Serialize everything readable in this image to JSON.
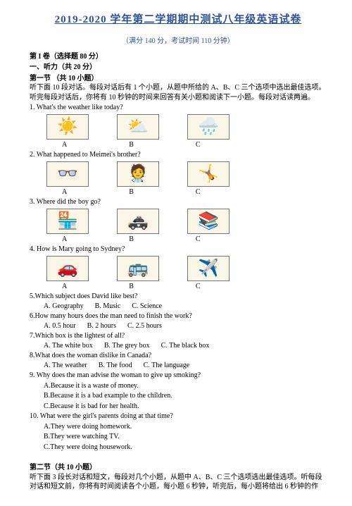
{
  "header": {
    "title": "2019-2020 学年第二学期期中测试八年级英语试卷",
    "subtitle": "（满分 140 分，考试时间 110 分钟）"
  },
  "part1": {
    "head": "第 I 卷（选择题 80 分）",
    "listening": "一、听力（共 20 分）",
    "section1_title": "第一节 （共 10 小题）",
    "section1_instr": "听下面 10 段对话。每段对话后有 1 个小题，从题中所给的 A、B、C 三个选项中选出最佳选项。听完每段对话后，你将有 10 秒钟的时间来回答有关小题和阅读下一小题。每段对话读两遍。"
  },
  "q1": {
    "text": "1. What's the weather like today?",
    "a": "A",
    "b": "B",
    "c": "C"
  },
  "q2": {
    "text": "2. What happened to Meimei's brother?",
    "a": "A",
    "b": "B",
    "c": "C"
  },
  "q3": {
    "text": "3. Where did the boy go?",
    "a": "A",
    "b": "B",
    "c": "C"
  },
  "q4": {
    "text": "4. How is Mary going to Sydney?",
    "a": "A",
    "b": "B",
    "c": "C"
  },
  "q5": {
    "text": "5.Which subject does David like best?",
    "a": "A. Geography",
    "b": "B. Music",
    "c": "C. Science"
  },
  "q6": {
    "text": "6.How many hours does the man need to finish the work?",
    "a": "A. 0.5 hour",
    "b": "B. 2 hours",
    "c": "C. 2.5 hours"
  },
  "q7": {
    "text": "7.Which box is the lightest of all?",
    "a": "A. The white box",
    "b": "B. The grey box",
    "c": "C. The black box"
  },
  "q8": {
    "text": "8.What does the woman dislike in Canada?",
    "a": "A. The weather",
    "b": "B. The food",
    "c": "C. The language"
  },
  "q9": {
    "text": "9. Why does the man advise the woman to give up smoking?",
    "a": "A.Because it is a waste of money.",
    "b": "B.Because it is a bad example to the children.",
    "c": "C.Because it is bad for her health."
  },
  "q10": {
    "text": "10. What were the girl's parents doing at that time?",
    "a": "A.They were doing homework.",
    "b": "B.They were watching TV.",
    "c": "C.They were doing housework."
  },
  "section2": {
    "title": "第二节（共 10 小题）",
    "instr": "听下面 3 段长对话和短文，每段对几个小题，从题中 A、B、C 三个选项选出最佳选项。听每段对话和短文前，你将有时间阅读各个小题，每小题 6 秒钟，听完后，每小题将给出 6 秒钟的作"
  },
  "icons": {
    "sun": "☀️",
    "cloud": "⛅",
    "rain": "🌧️",
    "bino": "👓",
    "doctor": "🧑‍⚕️",
    "fall": "🤸",
    "rest": "🏪",
    "police": "🚓",
    "lib": "📚",
    "car": "🚗",
    "bus": "🚌",
    "plane": "✈️"
  }
}
